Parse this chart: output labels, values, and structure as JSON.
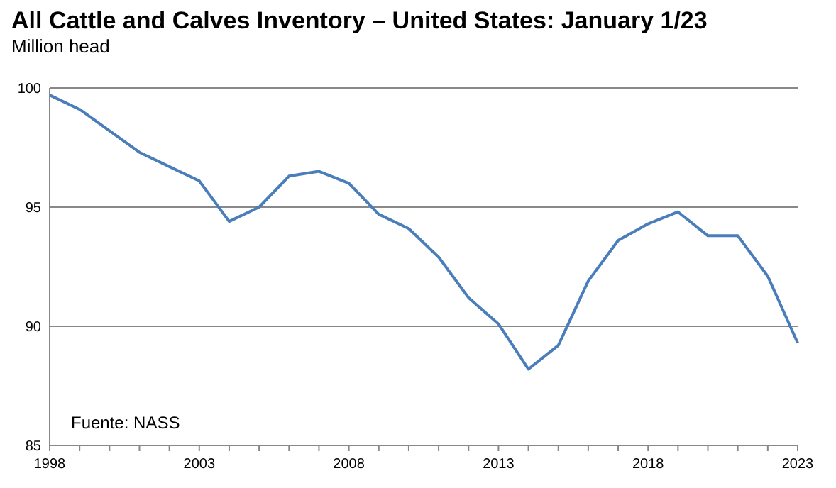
{
  "chart_data": {
    "type": "line",
    "title": "All Cattle and Calves Inventory – United States: January 1/23",
    "subtitle": "Million head",
    "x": [
      1998,
      1999,
      2000,
      2001,
      2002,
      2003,
      2004,
      2005,
      2006,
      2007,
      2008,
      2009,
      2010,
      2011,
      2012,
      2013,
      2014,
      2015,
      2016,
      2017,
      2018,
      2019,
      2020,
      2021,
      2022,
      2023
    ],
    "series": [
      {
        "color": "#4a7ebb",
        "values": [
          99.7,
          99.1,
          98.2,
          97.3,
          96.7,
          96.1,
          94.4,
          95.0,
          96.3,
          96.5,
          96.0,
          94.7,
          94.1,
          92.9,
          91.2,
          90.1,
          88.2,
          89.2,
          91.9,
          93.6,
          94.3,
          94.8,
          93.8,
          93.8,
          92.1,
          89.3
        ]
      }
    ],
    "xlim": [
      1998,
      2023
    ],
    "xticks": [
      1998,
      {
        "value": 1999,
        "label": null
      },
      {
        "value": 2000,
        "label": null
      },
      {
        "value": 2001,
        "label": null
      },
      {
        "value": 2002,
        "label": null
      },
      2003,
      {
        "value": 2004,
        "label": null
      },
      {
        "value": 2005,
        "label": null
      },
      {
        "value": 2006,
        "label": null
      },
      {
        "value": 2007,
        "label": null
      },
      2008,
      {
        "value": 2009,
        "label": null
      },
      {
        "value": 2010,
        "label": null
      },
      {
        "value": 2011,
        "label": null
      },
      {
        "value": 2012,
        "label": null
      },
      2013,
      {
        "value": 2014,
        "label": null
      },
      {
        "value": 2015,
        "label": null
      },
      {
        "value": 2016,
        "label": null
      },
      {
        "value": 2017,
        "label": null
      },
      2018,
      {
        "value": 2019,
        "label": null
      },
      {
        "value": 2020,
        "label": null
      },
      {
        "value": 2021,
        "label": null
      },
      {
        "value": 2022,
        "label": null
      },
      2023
    ],
    "ylim": [
      85,
      100
    ],
    "yticks": [
      85,
      90,
      95,
      100
    ],
    "grid": "y",
    "marker": "none",
    "line_style": "solid",
    "annotations": [
      "Fuente: NASS"
    ]
  }
}
